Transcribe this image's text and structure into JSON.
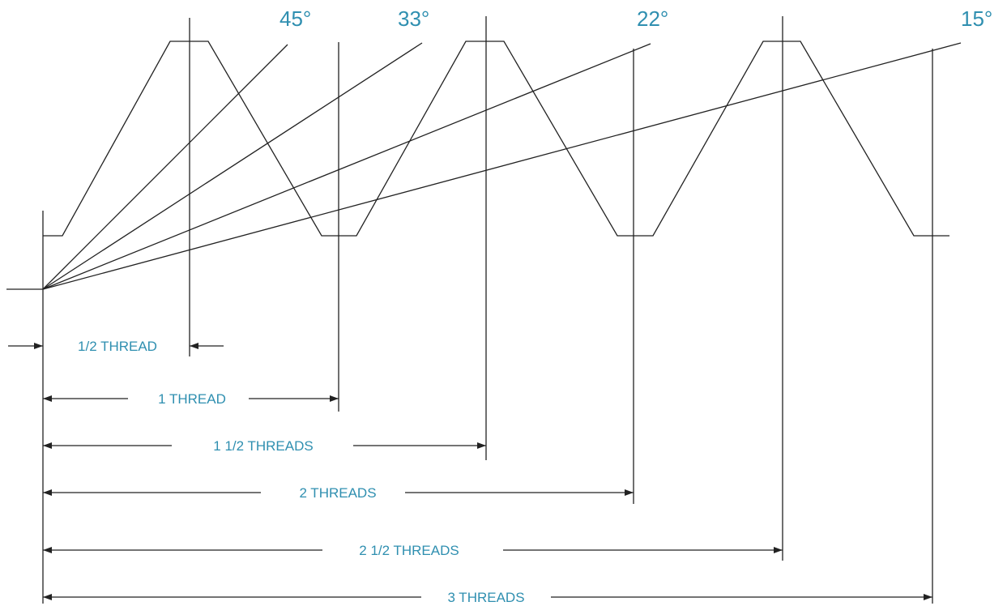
{
  "colors": {
    "ink": "#222222",
    "label": "#2f8fb0",
    "background": "#ffffff"
  },
  "angles": [
    "45°",
    "33°",
    "22°",
    "15°"
  ],
  "dimensions": [
    "1/2 THREAD",
    "1 THREAD",
    "1 1/2 THREADS",
    "2 THREADS",
    "2 1/2 THREADS",
    "3 THREADS"
  ]
}
